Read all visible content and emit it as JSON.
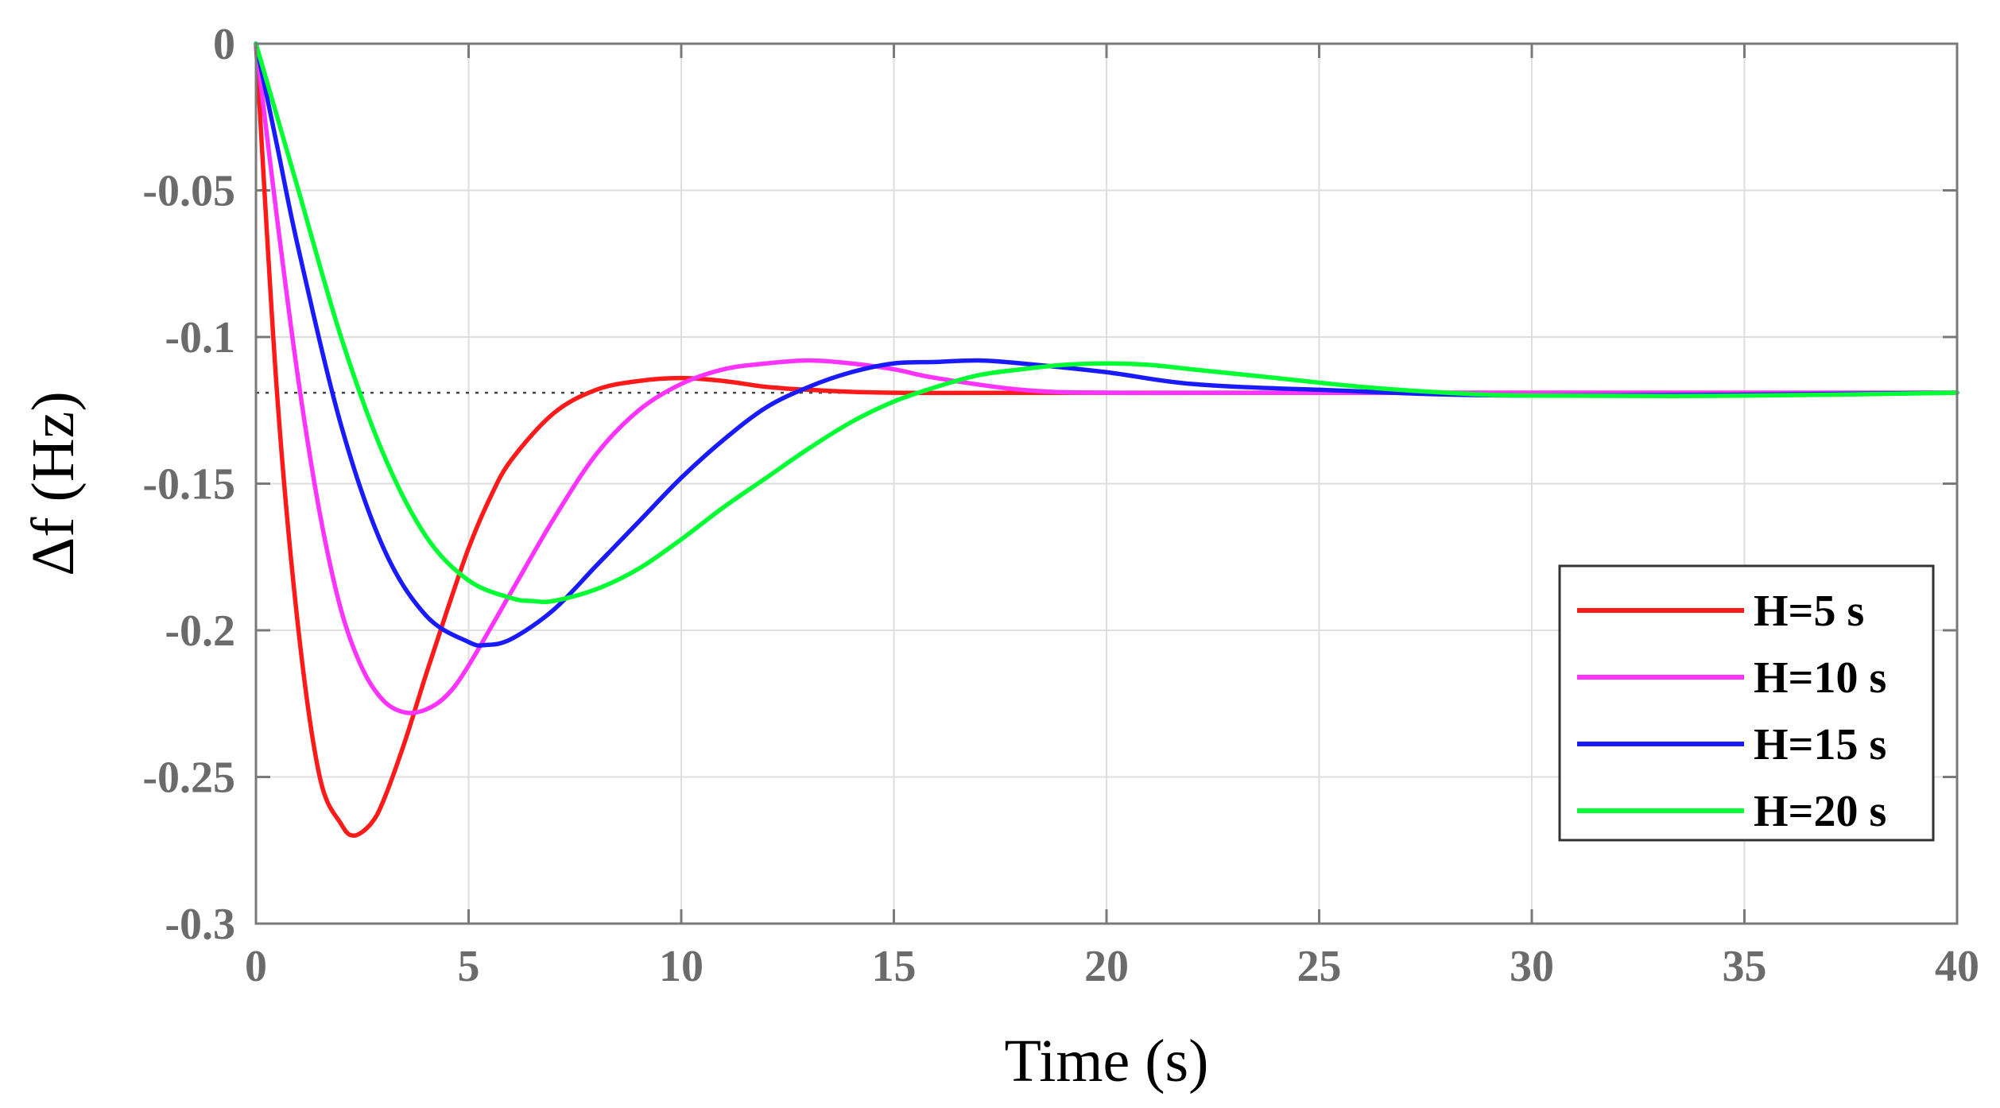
{
  "chart_data": {
    "type": "line",
    "title": "",
    "xlabel": "Time (s)",
    "ylabel": "Δf (Hz)",
    "xlim": [
      0,
      40
    ],
    "ylim": [
      -0.3,
      0
    ],
    "xticks": [
      0,
      5,
      10,
      15,
      20,
      25,
      30,
      35,
      40
    ],
    "xtick_labels": [
      "0",
      "5",
      "10",
      "15",
      "20",
      "25",
      "30",
      "35",
      "40"
    ],
    "yticks": [
      0,
      -0.05,
      -0.1,
      -0.15,
      -0.2,
      -0.25,
      -0.3
    ],
    "ytick_labels": [
      "0",
      "-0.05",
      "-0.1",
      "-0.15",
      "-0.2",
      "-0.25",
      "-0.3"
    ],
    "grid": true,
    "legend_position": "right",
    "reference_line": {
      "y": -0.119,
      "style": "dotted"
    },
    "series": [
      {
        "name": "H=5 s",
        "color": "#ff1a1a",
        "points": [
          [
            0,
            0
          ],
          [
            0.5,
            -0.12
          ],
          [
            1,
            -0.2
          ],
          [
            1.5,
            -0.25
          ],
          [
            2,
            -0.266
          ],
          [
            2.3,
            -0.27
          ],
          [
            2.7,
            -0.266
          ],
          [
            3,
            -0.258
          ],
          [
            3.5,
            -0.238
          ],
          [
            4,
            -0.215
          ],
          [
            4.5,
            -0.193
          ],
          [
            5,
            -0.172
          ],
          [
            5.5,
            -0.155
          ],
          [
            6,
            -0.142
          ],
          [
            7,
            -0.126
          ],
          [
            8,
            -0.118
          ],
          [
            9,
            -0.115
          ],
          [
            10,
            -0.114
          ],
          [
            11,
            -0.115
          ],
          [
            12,
            -0.117
          ],
          [
            13,
            -0.118
          ],
          [
            15,
            -0.119
          ],
          [
            20,
            -0.119
          ],
          [
            40,
            -0.119
          ]
        ]
      },
      {
        "name": "H=10 s",
        "color": "#ff33ff",
        "points": [
          [
            0,
            0
          ],
          [
            0.5,
            -0.06
          ],
          [
            1,
            -0.115
          ],
          [
            1.5,
            -0.16
          ],
          [
            2,
            -0.193
          ],
          [
            2.5,
            -0.213
          ],
          [
            3,
            -0.224
          ],
          [
            3.5,
            -0.228
          ],
          [
            4,
            -0.227
          ],
          [
            4.5,
            -0.222
          ],
          [
            5,
            -0.212
          ],
          [
            6,
            -0.187
          ],
          [
            7,
            -0.162
          ],
          [
            8,
            -0.14
          ],
          [
            9,
            -0.125
          ],
          [
            10,
            -0.116
          ],
          [
            11,
            -0.111
          ],
          [
            12,
            -0.109
          ],
          [
            13,
            -0.108
          ],
          [
            14,
            -0.109
          ],
          [
            15,
            -0.111
          ],
          [
            16,
            -0.114
          ],
          [
            18,
            -0.118
          ],
          [
            20,
            -0.119
          ],
          [
            25,
            -0.119
          ],
          [
            40,
            -0.119
          ]
        ]
      },
      {
        "name": "H=15 s",
        "color": "#1a1aff",
        "points": [
          [
            0,
            0
          ],
          [
            0.5,
            -0.035
          ],
          [
            1,
            -0.07
          ],
          [
            2,
            -0.13
          ],
          [
            3,
            -0.172
          ],
          [
            4,
            -0.195
          ],
          [
            5,
            -0.204
          ],
          [
            5.4,
            -0.205
          ],
          [
            6,
            -0.203
          ],
          [
            7,
            -0.193
          ],
          [
            8,
            -0.178
          ],
          [
            9,
            -0.163
          ],
          [
            10,
            -0.148
          ],
          [
            11,
            -0.135
          ],
          [
            12,
            -0.124
          ],
          [
            13,
            -0.117
          ],
          [
            14,
            -0.112
          ],
          [
            15,
            -0.109
          ],
          [
            16,
            -0.1085
          ],
          [
            17,
            -0.108
          ],
          [
            18,
            -0.109
          ],
          [
            20,
            -0.112
          ],
          [
            22,
            -0.116
          ],
          [
            25,
            -0.118
          ],
          [
            30,
            -0.12
          ],
          [
            40,
            -0.119
          ]
        ]
      },
      {
        "name": "H=20 s",
        "color": "#00ff33",
        "points": [
          [
            0,
            0
          ],
          [
            0.5,
            -0.025
          ],
          [
            1,
            -0.05
          ],
          [
            2,
            -0.1
          ],
          [
            3,
            -0.14
          ],
          [
            4,
            -0.168
          ],
          [
            5,
            -0.183
          ],
          [
            6,
            -0.189
          ],
          [
            6.5,
            -0.19
          ],
          [
            7,
            -0.19
          ],
          [
            8,
            -0.186
          ],
          [
            9,
            -0.179
          ],
          [
            10,
            -0.169
          ],
          [
            11,
            -0.158
          ],
          [
            12,
            -0.148
          ],
          [
            13,
            -0.138
          ],
          [
            14,
            -0.129
          ],
          [
            15,
            -0.122
          ],
          [
            16,
            -0.117
          ],
          [
            17,
            -0.113
          ],
          [
            18,
            -0.111
          ],
          [
            19,
            -0.1095
          ],
          [
            20,
            -0.109
          ],
          [
            21,
            -0.1095
          ],
          [
            22,
            -0.111
          ],
          [
            24,
            -0.114
          ],
          [
            26,
            -0.117
          ],
          [
            28,
            -0.119
          ],
          [
            30,
            -0.12
          ],
          [
            35,
            -0.12
          ],
          [
            40,
            -0.119
          ]
        ]
      }
    ]
  }
}
